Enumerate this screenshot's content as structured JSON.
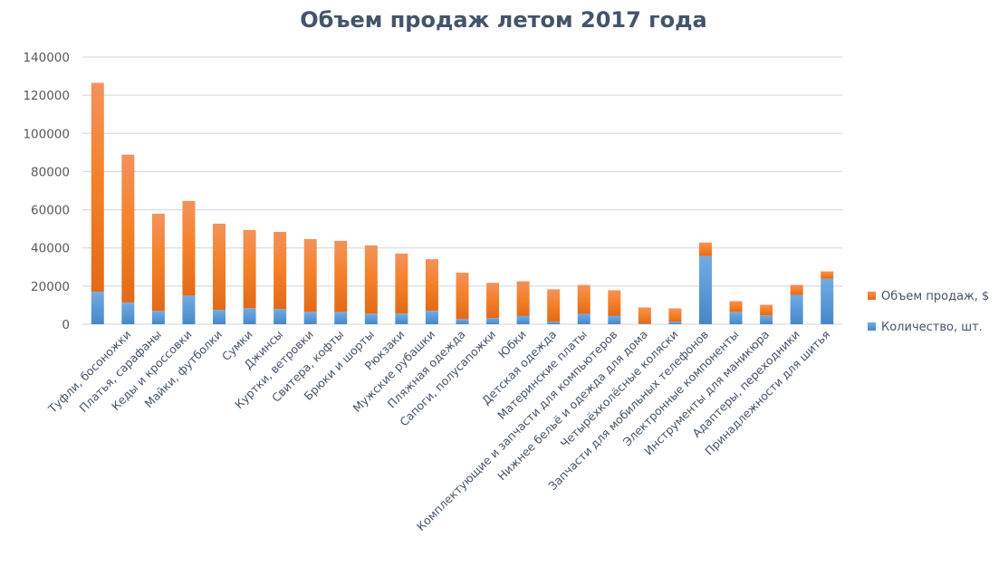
{
  "chart_data": {
    "type": "bar",
    "stacked": true,
    "title": "Объем продаж летом 2017 года",
    "xlabel": "",
    "ylabel": "",
    "ylim": [
      0,
      140000
    ],
    "yticks": [
      "0",
      "20000",
      "40000",
      "60000",
      "80000",
      "100000",
      "120000",
      "140000"
    ],
    "grid": true,
    "legend_position": "right",
    "categories": [
      "",
      "Туфли, босоножки",
      "Платья, сарафаны",
      "Кеды и кроссовки",
      "Майки, футболки",
      "Сумки",
      "Джинсы",
      "Куртки, ветровки",
      "Свитера, кофты",
      "Брюки и шорты",
      "Рюкзаки",
      "Мужские рубашки",
      "Пляжная одежда",
      "Сапоги, полусапожки",
      "Юбки",
      "Детская одежда",
      "Материнские платы",
      "Комплектующие и запчасти для компьютеров",
      "Нижнее бельё и одежда для дома",
      "Четырёхколёсные коляски",
      "Запчасти для мобильных телефонов",
      "Электронные компоненты",
      "Инструменты для маникюра",
      "Адаптеры, переходники",
      "Принадлежности для шитья"
    ],
    "series": [
      {
        "name": "Количество, шт.",
        "color": "#5b9bd5",
        "values": [
          17000,
          11300,
          7000,
          15000,
          7500,
          8400,
          8000,
          6500,
          6500,
          5600,
          5600,
          7000,
          2700,
          3200,
          4300,
          1300,
          5500,
          4300,
          300,
          1300,
          35700,
          6500,
          4600,
          15400,
          23900
        ]
      },
      {
        "name": "Объем продаж, $",
        "color": "#ed7d31",
        "values": [
          109500,
          77600,
          50900,
          49600,
          45200,
          41000,
          40400,
          38100,
          37200,
          35700,
          31400,
          27100,
          24300,
          18500,
          18200,
          17000,
          15100,
          13500,
          8500,
          7000,
          7100,
          5600,
          5600,
          5200,
          3800
        ]
      }
    ],
    "legend": [
      "Объем продаж, $",
      "Количество, шт."
    ]
  }
}
